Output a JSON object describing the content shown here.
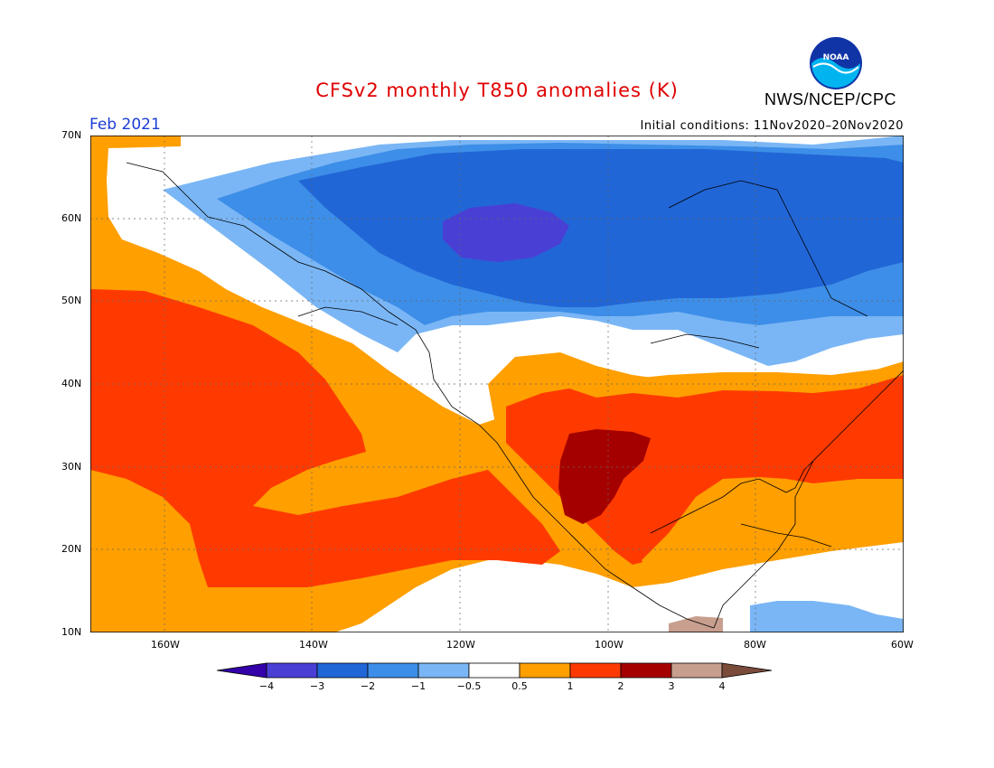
{
  "title": "CFSv2 monthly T850 anomalies (K)",
  "org": "NWS/NCEP/CPC",
  "logo_text": "NOAA",
  "month": "Feb 2021",
  "initial_conditions": "Initial conditions: 11Nov2020–20Nov2020",
  "lat_labels": [
    "70N",
    "60N",
    "50N",
    "40N",
    "30N",
    "20N",
    "10N"
  ],
  "lon_labels": [
    "160W",
    "140W",
    "120W",
    "100W",
    "80W",
    "60W"
  ],
  "colorbar": {
    "labels": [
      "−4",
      "−3",
      "−2",
      "−1",
      "−0.5",
      "0.5",
      "1",
      "2",
      "3",
      "4"
    ],
    "colors": [
      "#3300aa",
      "#4a3fd4",
      "#2166d6",
      "#3d8ee8",
      "#7ab6f5",
      "#ffffff",
      "#ff9f00",
      "#ff3a00",
      "#a50000",
      "#c89f8f",
      "#7a4b3a"
    ]
  },
  "anomaly_colors": {
    "lt_-3": "#4a3fd4",
    "-3_-2": "#2166d6",
    "-2_-1": "#3d8ee8",
    "-1_-0.5": "#7ab6f5",
    "-0.5_0.5": "#ffffff",
    "0.5_1": "#ff9f00",
    "1_2": "#ff3a00",
    "2_3": "#a50000",
    "3_4": "#c89f8f"
  }
}
